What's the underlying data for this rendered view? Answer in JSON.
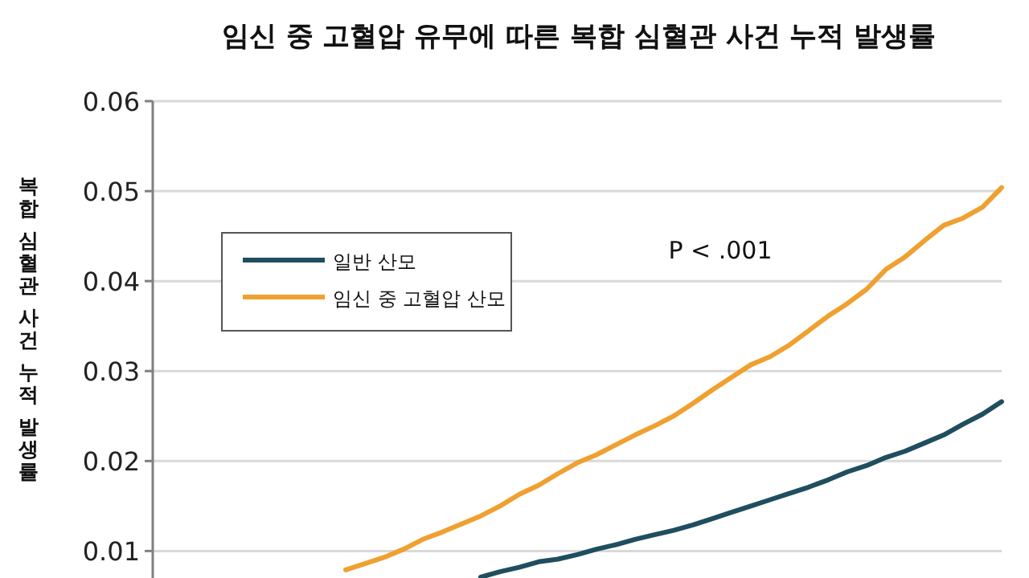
{
  "chart_data": {
    "type": "line",
    "title": "임신 중 고혈압 유무에 따른 복합 심혈관 사건 누적 발생률",
    "ylabel": "복합 심혈관 사건 누적 발생률",
    "categories": [
      null,
      null,
      null,
      null,
      null,
      null,
      null,
      null,
      null,
      null,
      null,
      null,
      null,
      null,
      null,
      null,
      null,
      null,
      null,
      null,
      null,
      null,
      null,
      null,
      null,
      null,
      null,
      null,
      null,
      null,
      null,
      null,
      null,
      null,
      null,
      null,
      null,
      null,
      null,
      null,
      null,
      null,
      null,
      null,
      null
    ],
    "series": [
      {
        "name": "일반 산모",
        "color": "#1f4e5f",
        "values": [
          null,
          null,
          null,
          null,
          null,
          null,
          null,
          null,
          null,
          null,
          null,
          null,
          null,
          null,
          null,
          null,
          null,
          0.0071,
          0.0077,
          0.0082,
          0.0088,
          0.0091,
          0.0096,
          0.0102,
          0.0107,
          0.0113,
          0.0118,
          0.0123,
          0.0129,
          0.0136,
          0.0143,
          0.015,
          0.0157,
          0.0164,
          0.0171,
          0.0179,
          0.0188,
          0.0195,
          0.0204,
          0.0211,
          0.022,
          0.0229,
          0.0241,
          0.0252,
          0.0266
        ]
      },
      {
        "name": "임신 중 고혈압 산모",
        "color": "#f0a030",
        "values": [
          null,
          null,
          null,
          null,
          null,
          null,
          null,
          null,
          null,
          null,
          0.0079,
          0.0086,
          0.0093,
          0.0102,
          0.0113,
          0.0121,
          0.013,
          0.0139,
          0.015,
          0.0163,
          0.0173,
          0.0186,
          0.0198,
          0.0207,
          0.0218,
          0.0229,
          0.0239,
          0.025,
          0.0264,
          0.0279,
          0.0293,
          0.0307,
          0.0316,
          0.0329,
          0.0345,
          0.0361,
          0.0375,
          0.0391,
          0.0413,
          0.0427,
          0.0445,
          0.0462,
          0.047,
          0.0482,
          0.0504
        ]
      }
    ],
    "ylim": [
      0.007,
      0.06
    ],
    "yticks": [
      0.01,
      0.02,
      0.03,
      0.04,
      0.05,
      0.06
    ],
    "grid": "y",
    "legend": "left",
    "marker": "none",
    "line_style": "solid",
    "annotations": [
      "P < .001"
    ]
  }
}
